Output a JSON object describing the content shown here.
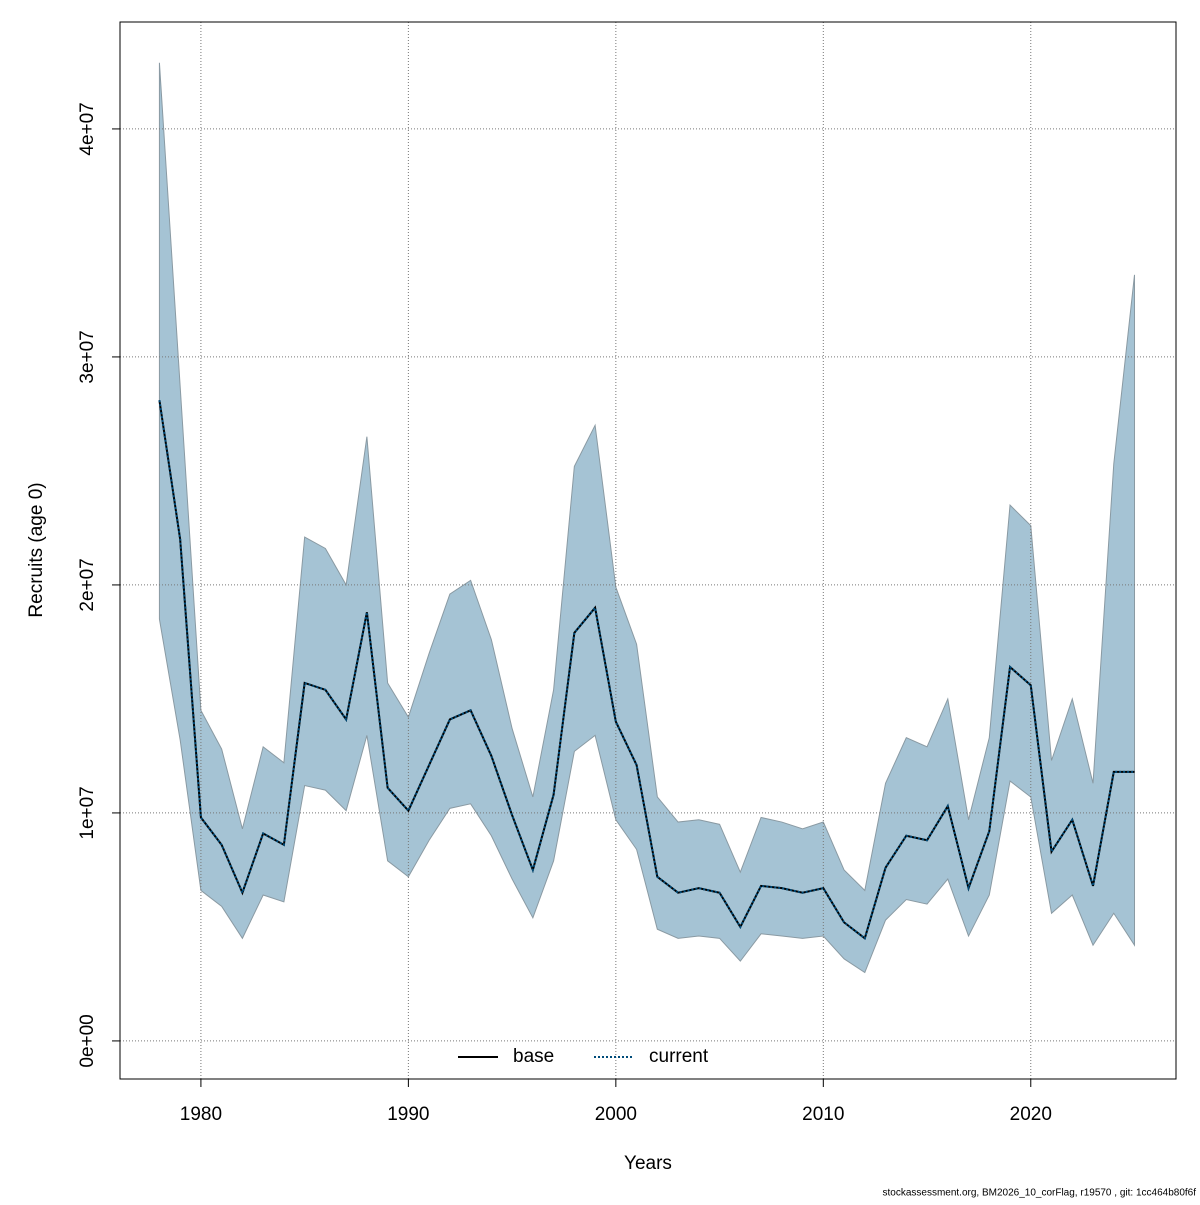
{
  "chart_data": {
    "type": "line",
    "x_label": "Years",
    "y_label": "Recruits (age 0)",
    "footnote": "stockassessment.org, BM2026_10_corFlag, r19570 , git: 1cc464b80f6f",
    "x": [
      1978,
      1979,
      1980,
      1981,
      1982,
      1983,
      1984,
      1985,
      1986,
      1987,
      1988,
      1989,
      1990,
      1991,
      1992,
      1993,
      1994,
      1995,
      1996,
      1997,
      1998,
      1999,
      2000,
      2001,
      2002,
      2003,
      2004,
      2005,
      2006,
      2007,
      2008,
      2009,
      2010,
      2011,
      2012,
      2013,
      2014,
      2015,
      2016,
      2017,
      2018,
      2019,
      2020,
      2021,
      2022,
      2023,
      2024,
      2025
    ],
    "series": [
      {
        "name": "base",
        "color": "#000000",
        "dash": "solid",
        "values": [
          28100000,
          22000000,
          9800000,
          8600000,
          6500000,
          9100000,
          8600000,
          15700000,
          15400000,
          14100000,
          18800000,
          11100000,
          10100000,
          12100000,
          14100000,
          14500000,
          12500000,
          9900000,
          7500000,
          10800000,
          17900000,
          19000000,
          14000000,
          12100000,
          7200000,
          6500000,
          6700000,
          6500000,
          5000000,
          6800000,
          6700000,
          6500000,
          6700000,
          5200000,
          4500000,
          7600000,
          9000000,
          8800000,
          10300000,
          6700000,
          9200000,
          16400000,
          15600000,
          8300000,
          9700000,
          6800000,
          11800000,
          11800000
        ]
      },
      {
        "name": "current",
        "color": "#004c7a",
        "dash": "dotted",
        "band_color": "#a5c3d4",
        "values": [
          28100000,
          22000000,
          9800000,
          8600000,
          6500000,
          9100000,
          8600000,
          15700000,
          15400000,
          14100000,
          18800000,
          11100000,
          10100000,
          12100000,
          14100000,
          14500000,
          12500000,
          9900000,
          7500000,
          10800000,
          17900000,
          19000000,
          14000000,
          12100000,
          7200000,
          6500000,
          6700000,
          6500000,
          5000000,
          6800000,
          6700000,
          6500000,
          6700000,
          5200000,
          4500000,
          7600000,
          9000000,
          8800000,
          10300000,
          6700000,
          9200000,
          16400000,
          15600000,
          8300000,
          9700000,
          6800000,
          11800000,
          11800000
        ],
        "lower": [
          18500000,
          13200000,
          6600000,
          5900000,
          4500000,
          6400000,
          6100000,
          11200000,
          11000000,
          10100000,
          13400000,
          7900000,
          7200000,
          8800000,
          10200000,
          10400000,
          9000000,
          7100000,
          5400000,
          7900000,
          12700000,
          13400000,
          9700000,
          8400000,
          4900000,
          4500000,
          4600000,
          4500000,
          3500000,
          4700000,
          4600000,
          4500000,
          4600000,
          3600000,
          3000000,
          5300000,
          6200000,
          6000000,
          7100000,
          4600000,
          6400000,
          11400000,
          10700000,
          5600000,
          6400000,
          4200000,
          5600000,
          4200000
        ],
        "upper": [
          42900000,
          28700000,
          14500000,
          12800000,
          9300000,
          12900000,
          12200000,
          22100000,
          21600000,
          20000000,
          26500000,
          15700000,
          14200000,
          17000000,
          19600000,
          20200000,
          17600000,
          13700000,
          10700000,
          15400000,
          25200000,
          27000000,
          19900000,
          17400000,
          10700000,
          9600000,
          9700000,
          9500000,
          7400000,
          9800000,
          9600000,
          9300000,
          9600000,
          7500000,
          6600000,
          11300000,
          13300000,
          12900000,
          15000000,
          9700000,
          13300000,
          23500000,
          22600000,
          12300000,
          15000000,
          11300000,
          25300000,
          33600000
        ]
      }
    ],
    "xlim": [
      1976.1,
      2027.0
    ],
    "xticks": [
      1980,
      1990,
      2000,
      2010,
      2020
    ],
    "ylim": [
      -1670000,
      44690000
    ],
    "yticks": [
      {
        "value": 0,
        "label": "0e+00"
      },
      {
        "value": 10000000,
        "label": "1e+07"
      },
      {
        "value": 20000000,
        "label": "2e+07"
      },
      {
        "value": 30000000,
        "label": "3e+07"
      },
      {
        "value": 40000000,
        "label": "4e+07"
      }
    ],
    "grid": true,
    "legend": "bottom"
  }
}
